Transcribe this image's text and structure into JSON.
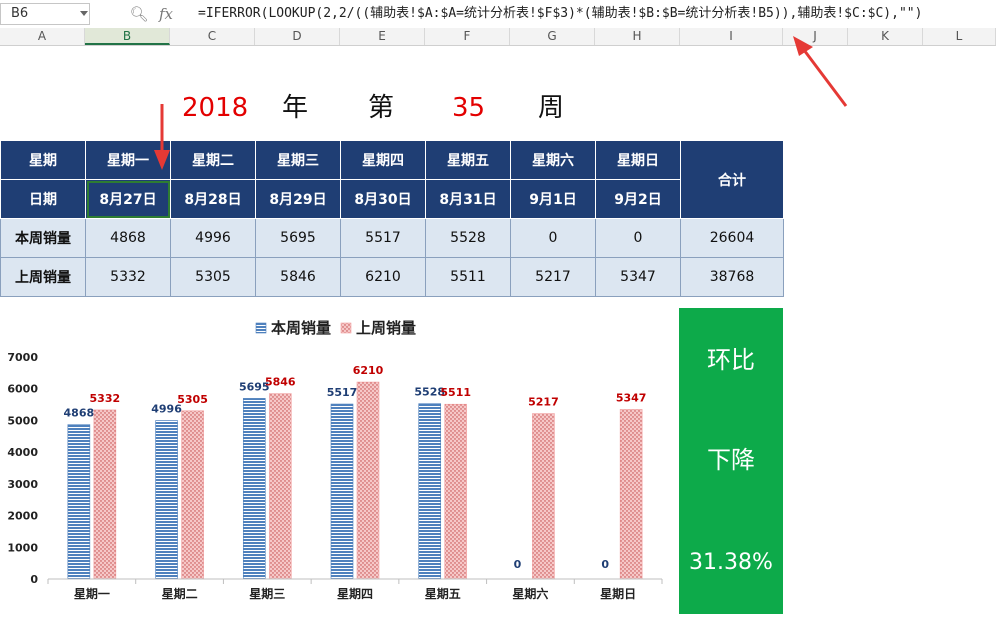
{
  "formula_bar": {
    "name_box": "B6",
    "zoom_icon": "zoom-icon",
    "fx_label": "fx",
    "formula": "=IFERROR(LOOKUP(2,2/((辅助表!$A:$A=统计分析表!$F$3)*(辅助表!$B:$B=统计分析表!B5)),辅助表!$C:$C),\"\")"
  },
  "columns": [
    "A",
    "B",
    "C",
    "D",
    "E",
    "F",
    "G",
    "H",
    "I",
    "J",
    "K",
    "L"
  ],
  "selected_column": "B",
  "title": {
    "year": "2018",
    "year_unit": "年",
    "week_prefix": "第",
    "week": "35",
    "week_unit": "周"
  },
  "table": {
    "row_weekday_label": "星期",
    "row_date_label": "日期",
    "weekdays": [
      "星期一",
      "星期二",
      "星期三",
      "星期四",
      "星期五",
      "星期六",
      "星期日"
    ],
    "dates": [
      "8月27日",
      "8月28日",
      "8月29日",
      "8月30日",
      "8月31日",
      "9月1日",
      "9月2日"
    ],
    "total_label": "合计",
    "this_week_label": "本周销量",
    "last_week_label": "上周销量",
    "this_week": [
      4868,
      4996,
      5695,
      5517,
      5528,
      0,
      0
    ],
    "this_week_total": 26604,
    "last_week": [
      5332,
      5305,
      5846,
      6210,
      5511,
      5217,
      5347
    ],
    "last_week_total": 38768
  },
  "chart_data": {
    "type": "bar",
    "categories": [
      "星期一",
      "星期二",
      "星期三",
      "星期四",
      "星期五",
      "星期六",
      "星期日"
    ],
    "series": [
      {
        "name": "本周销量",
        "values": [
          4868,
          4996,
          5695,
          5517,
          5528,
          0,
          0
        ],
        "color": "#4f81bd"
      },
      {
        "name": "上周销量",
        "values": [
          5332,
          5305,
          5846,
          6210,
          5511,
          5217,
          5347
        ],
        "color": "#f2a0a0"
      }
    ],
    "ylim": [
      0,
      7000
    ],
    "yticks": [
      0,
      1000,
      2000,
      3000,
      4000,
      5000,
      6000,
      7000
    ],
    "legend": "top-center",
    "grid": false,
    "label_colors": {
      "this_week": "#1f3e74",
      "last_week": "#c00000"
    }
  },
  "ratio_panel": {
    "line1": "环比",
    "line2": "下降",
    "value": "31.38%"
  },
  "colors": {
    "header_bg": "#1f3e74",
    "cell_bg": "#dce6f1",
    "panel_bg": "#0daa4a",
    "accent_red": "#e30000"
  }
}
